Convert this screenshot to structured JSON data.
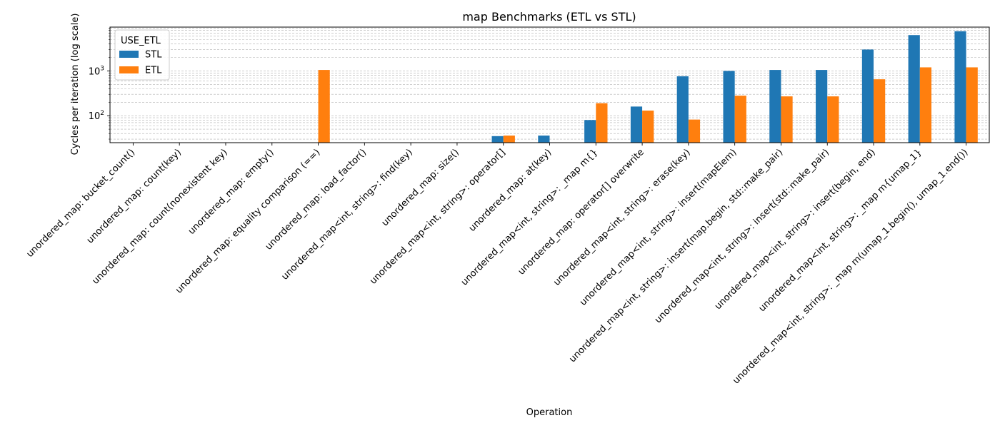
{
  "chart_data": {
    "type": "bar",
    "title": "map Benchmarks (ETL vs STL)",
    "xlabel": "Operation",
    "ylabel": "Cycles per iteration (log scale)",
    "yscale": "log",
    "ylim": [
      25,
      9500
    ],
    "y_ticks": [
      {
        "value": 100,
        "base": "10",
        "exp": "2"
      },
      {
        "value": 1000,
        "base": "10",
        "exp": "3"
      }
    ],
    "grid": "both major and minor, dashed, y-axis",
    "legend": {
      "title": "USE_ETL",
      "placement": "top-left"
    },
    "categories": [
      "unordered_map: bucket_count()",
      "unordered_map: count(key)",
      "unordered_map: count(nonexistent key)",
      "unordered_map: empty()",
      "unordered_map: equality comparison (==)",
      "unordered_map: load_factor()",
      "unordered_map<int, string>: find(key)",
      "unordered_map: size()",
      "unordered_map<int, string>: operator[]",
      "unordered_map: at(key)",
      "unordered_map<int, string>: _map m{}",
      "unordered_map: operator[] overwrite",
      "unordered_map<int, string>: erase(key)",
      "unordered_map<int, string>: insert(mapElem)",
      "unordered_map<int, string>: insert(map.begin, std::make_pair)",
      "unordered_map<int, string>: insert(std::make_pair)",
      "unordered_map<int, string>: insert(begin, end)",
      "unordered_map<int, string>: _map m{umap_1}",
      "unordered_map<int, string>: _map m(umap_1.begin(), umap_1.end())"
    ],
    "series": [
      {
        "name": "STL",
        "color": "#1f77b4",
        "values": [
          null,
          null,
          null,
          null,
          null,
          null,
          null,
          null,
          35,
          36,
          80,
          160,
          760,
          1000,
          1050,
          1050,
          3000,
          6300,
          7700
        ]
      },
      {
        "name": "ETL",
        "color": "#ff7f0e",
        "values": [
          null,
          null,
          null,
          null,
          1050,
          null,
          null,
          null,
          36,
          null,
          190,
          130,
          82,
          280,
          270,
          270,
          650,
          1200,
          1200
        ]
      }
    ]
  }
}
